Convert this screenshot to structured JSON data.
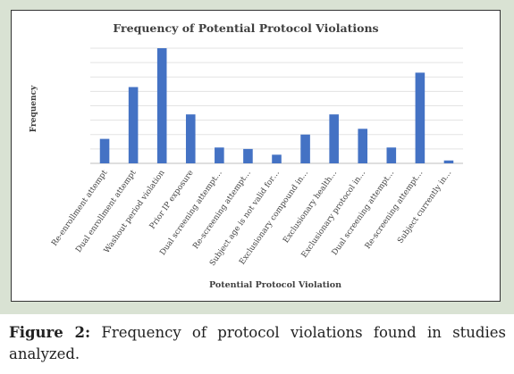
{
  "chart_data": {
    "type": "bar",
    "title": "Frequency of Potential Protocol Violations",
    "xlabel": "Potential Protocol Violation",
    "ylabel": "Frequency",
    "ylim": [
      0,
      8
    ],
    "grid": true,
    "bar_color": "#4472c4",
    "categories": [
      "Re-enrollment attempt",
      "Dual enrollment attempt",
      "Washout period violation",
      "Prior IP exposure",
      "Dual screening attempt…",
      "Re-screening attempt…",
      "Subject age is not valid for…",
      "Exclusionary compound in…",
      "Exclusionary health…",
      "Exclusionary protocol in…",
      "Dual screening attempt…",
      "Re-screening attempt…",
      "Subject currently in…"
    ],
    "values": [
      1.7,
      5.3,
      8.0,
      3.4,
      1.1,
      1.0,
      0.6,
      2.0,
      3.4,
      2.4,
      1.1,
      6.3,
      0.2
    ]
  },
  "caption": {
    "label": "Figure 2:",
    "text": "Frequency of protocol violations found in studies analyzed."
  }
}
